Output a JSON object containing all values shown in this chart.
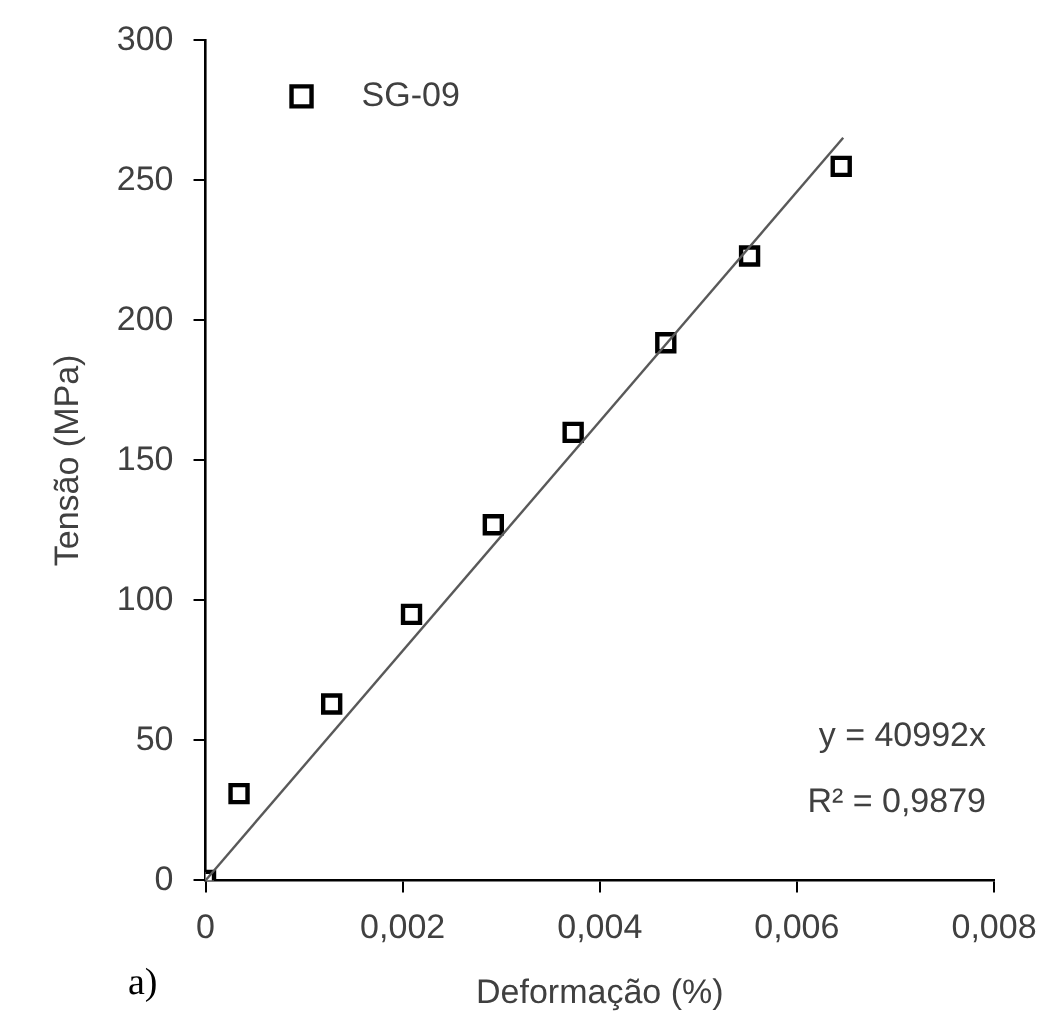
{
  "chart_data": {
    "type": "scatter",
    "xlabel": "Deformação (%)",
    "ylabel": "Tensão (MPa)",
    "xlim": [
      0,
      0.008
    ],
    "xticks": [
      0,
      {
        "value": 0.002,
        "label": "0,002"
      },
      {
        "value": 0.004,
        "label": "0,004"
      },
      {
        "value": 0.006,
        "label": "0,006"
      },
      {
        "value": 0.008,
        "label": "0,008"
      }
    ],
    "ylim": [
      0,
      300
    ],
    "yticks": [
      0,
      50,
      100,
      150,
      200,
      250,
      300
    ],
    "grid": false,
    "legend": "top left",
    "marker": "square",
    "series": [
      {
        "name": "SG-09",
        "color": "#000000",
        "x": [
          0,
          0.00034,
          0.00128,
          0.00209,
          0.00292,
          0.00373,
          0.00467,
          0.00552,
          0.00645
        ],
        "values": [
          0,
          31,
          63,
          95,
          127,
          160,
          192,
          223,
          255
        ]
      },
      {
        "type": "line",
        "color": "#595959",
        "x": [
          0,
          0.00647
        ],
        "values": [
          0,
          265.2
        ],
        "marker": "none"
      }
    ],
    "annotations": [
      "y = 40992x",
      "R² = 0,9879",
      "a)"
    ]
  }
}
